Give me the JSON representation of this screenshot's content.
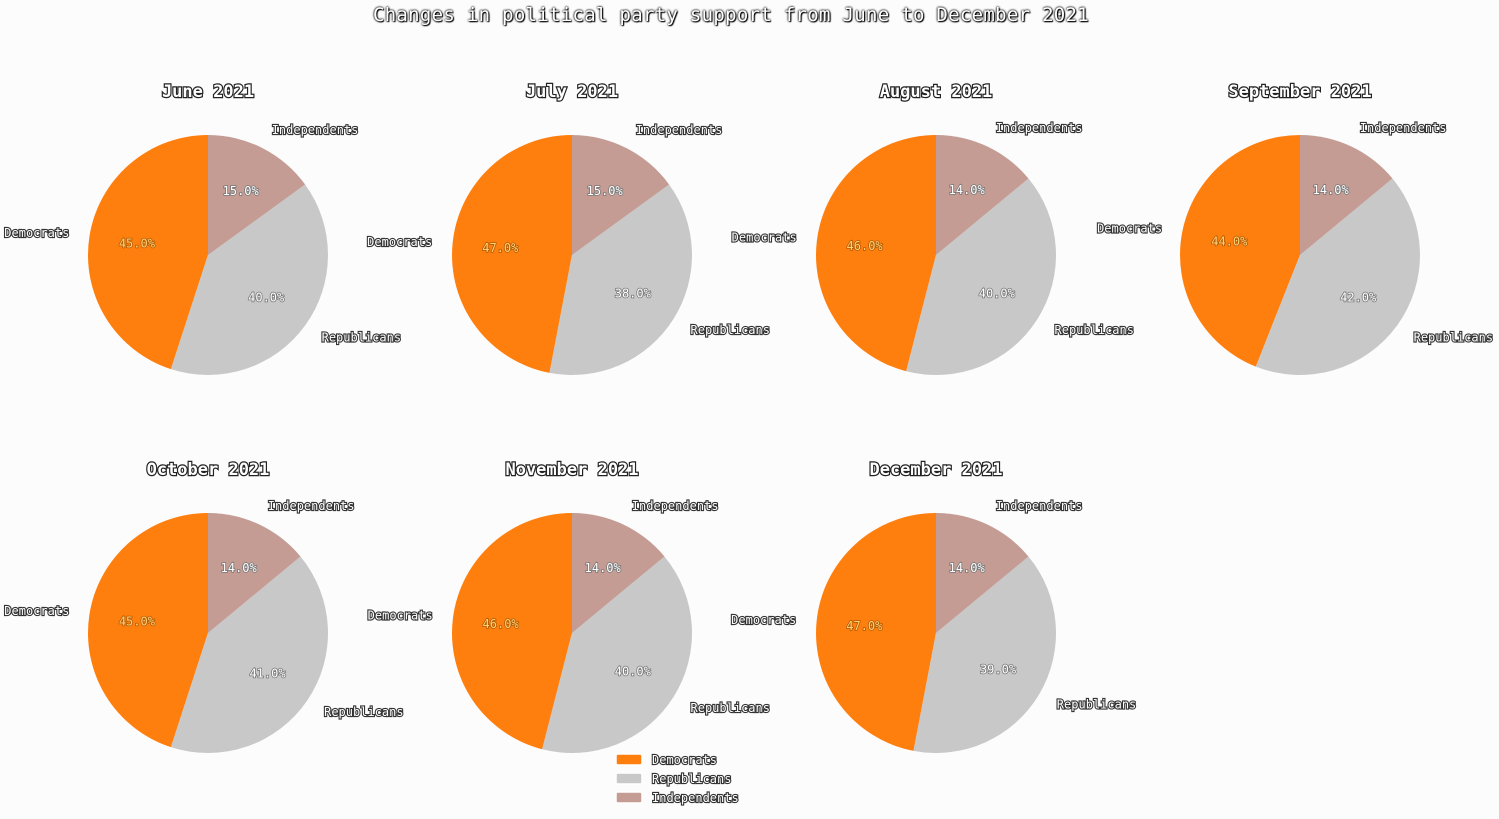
{
  "title": "Changes in political party support from June to December 2021",
  "colors": {
    "Democrats": "#ff7f0e",
    "Republicans": "#c8c8c8",
    "Independents": "#c49c94"
  },
  "chart_data": {
    "type": "pie",
    "categories": [
      "Democrats",
      "Republicans",
      "Independents"
    ],
    "legend": {
      "placement": "bottom-center",
      "entries": [
        "Democrats",
        "Republicans",
        "Independents"
      ]
    },
    "pies": [
      {
        "title": "June 2021",
        "values": [
          45.0,
          40.0,
          15.0
        ],
        "labels": [
          "45.0%",
          "40.0%",
          "15.0%"
        ]
      },
      {
        "title": "July 2021",
        "values": [
          47.0,
          38.0,
          15.0
        ],
        "labels": [
          "47.0%",
          "38.0%",
          "15.0%"
        ]
      },
      {
        "title": "August 2021",
        "values": [
          46.0,
          40.0,
          14.0
        ],
        "labels": [
          "46.0%",
          "40.0%",
          "14.0%"
        ]
      },
      {
        "title": "September 2021",
        "values": [
          44.0,
          42.0,
          14.0
        ],
        "labels": [
          "44.0%",
          "42.0%",
          "14.0%"
        ]
      },
      {
        "title": "October 2021",
        "values": [
          45.0,
          41.0,
          14.0
        ],
        "labels": [
          "45.0%",
          "41.0%",
          "14.0%"
        ]
      },
      {
        "title": "November 2021",
        "values": [
          46.0,
          40.0,
          14.0
        ],
        "labels": [
          "46.0%",
          "40.0%",
          "14.0%"
        ]
      },
      {
        "title": "December 2021",
        "values": [
          47.0,
          39.0,
          14.0
        ],
        "labels": [
          "47.0%",
          "39.0%",
          "14.0%"
        ]
      }
    ]
  }
}
